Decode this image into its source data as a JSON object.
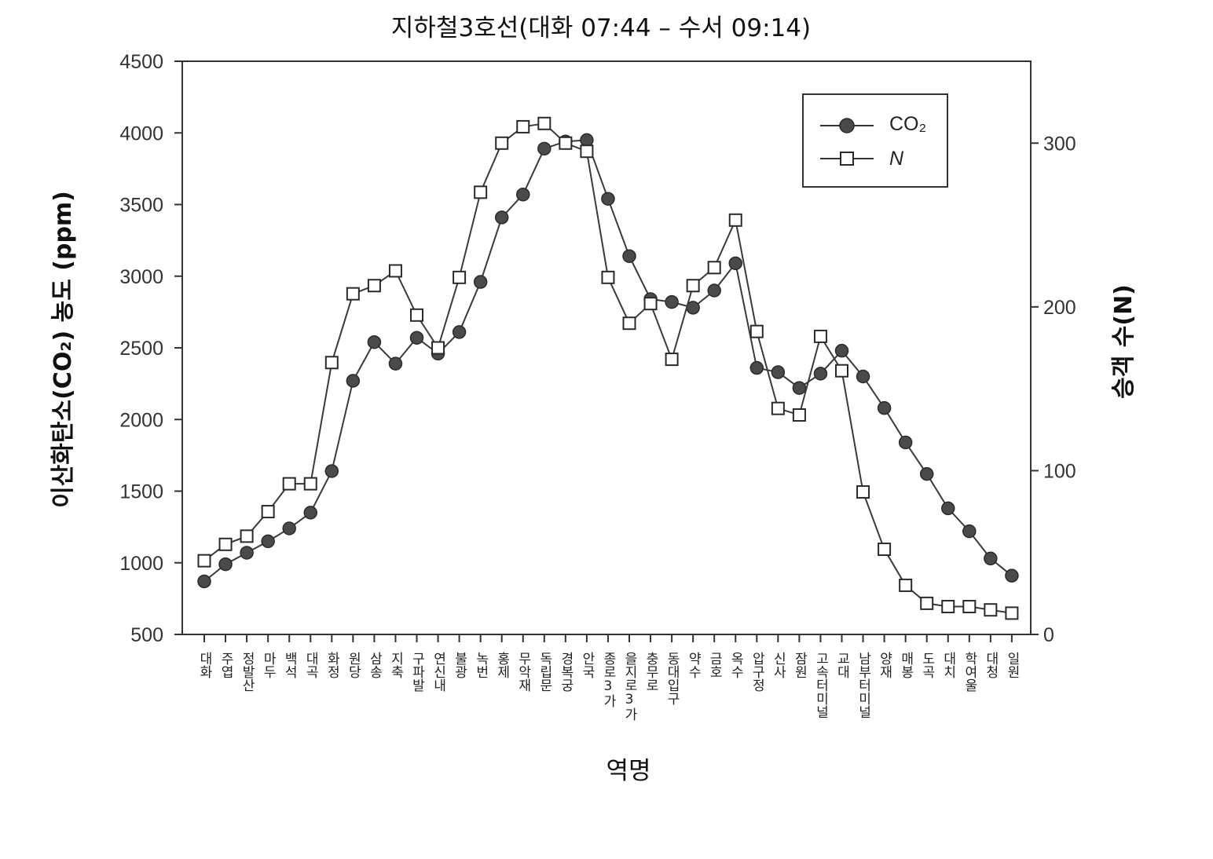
{
  "chart_data": {
    "type": "line",
    "title": "지하철3호선(대화 07:44 – 수서 09:14)",
    "xlabel": "역명",
    "ylabel": "이산화탄소(CO₂) 농도 (ppm)",
    "y2label": "승객 수(N)",
    "ylim": [
      500,
      4500
    ],
    "yticks": [
      500,
      1000,
      1500,
      2000,
      2500,
      3000,
      3500,
      4000,
      4500
    ],
    "y2lim": [
      0,
      350
    ],
    "y2ticks": [
      0,
      100,
      200,
      300
    ],
    "grid": false,
    "legend_position": "top-right",
    "categories": [
      "대화",
      "주엽",
      "정발산",
      "마두",
      "백석",
      "대곡",
      "화정",
      "원당",
      "삼송",
      "지축",
      "구파발",
      "연신내",
      "불광",
      "녹번",
      "홍제",
      "무악재",
      "독립문",
      "경복궁",
      "안국",
      "종로3가",
      "을지로3가",
      "충무로",
      "동대입구",
      "약수",
      "금호",
      "옥수",
      "압구정",
      "신사",
      "잠원",
      "고속터미널",
      "교대",
      "남부터미널",
      "양재",
      "매봉",
      "도곡",
      "대치",
      "학여울",
      "대청",
      "일원"
    ],
    "series": [
      {
        "name": "CO₂",
        "axis": "left",
        "marker": "filled-circle",
        "color": "#3a3a3a",
        "values": [
          870,
          990,
          1070,
          1150,
          1240,
          1350,
          1640,
          2270,
          2540,
          2390,
          2570,
          2460,
          2610,
          2960,
          3410,
          3570,
          3890,
          3940,
          3950,
          3540,
          3140,
          2840,
          2820,
          2780,
          2900,
          3090,
          2360,
          2330,
          2220,
          2320,
          2480,
          2300,
          2080,
          1840,
          1620,
          1380,
          1220,
          1030,
          910
        ]
      },
      {
        "name": "N",
        "axis": "right",
        "marker": "open-square",
        "color": "#3a3a3a",
        "values": [
          45,
          55,
          60,
          75,
          92,
          92,
          166,
          208,
          213,
          222,
          195,
          175,
          218,
          270,
          300,
          310,
          312,
          300,
          295,
          218,
          190,
          202,
          168,
          213,
          224,
          253,
          185,
          138,
          134,
          182,
          161,
          87,
          52,
          30,
          19,
          17,
          17,
          15,
          13
        ]
      }
    ]
  }
}
